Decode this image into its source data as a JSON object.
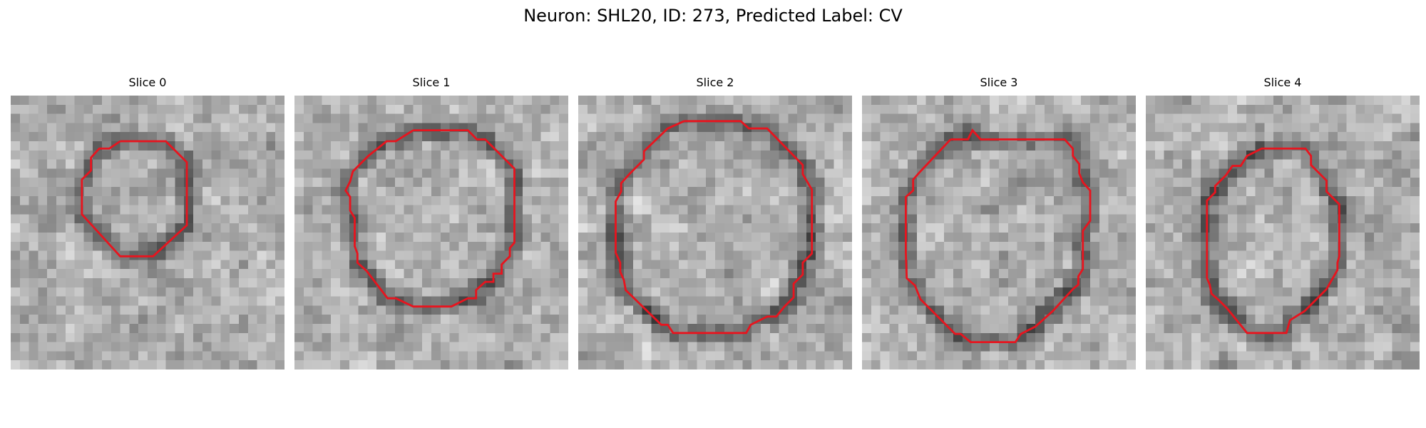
{
  "figure": {
    "title": "Neuron: SHL20, ID: 273, Predicted Label: CV"
  },
  "colors": {
    "contour": "#e8141e",
    "background": "#ffffff"
  },
  "slices": [
    {
      "label": "Slice 0"
    },
    {
      "label": "Slice 1"
    },
    {
      "label": "Slice 2"
    },
    {
      "label": "Slice 3"
    },
    {
      "label": "Slice 4"
    }
  ]
}
